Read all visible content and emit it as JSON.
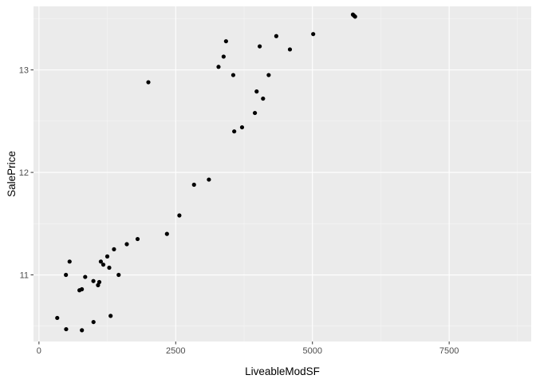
{
  "chart_data": {
    "type": "scatter",
    "title": "",
    "xlabel": "LiveableModSF",
    "ylabel": "SalePrice",
    "xlim": [
      -100,
      9000
    ],
    "ylim": [
      10.35,
      13.62
    ],
    "x_ticks": [
      0,
      2500,
      5000,
      7500
    ],
    "x_tick_labels": [
      "0",
      "2500",
      "5000",
      "7500"
    ],
    "y_ticks": [
      11,
      12,
      13
    ],
    "y_tick_labels": [
      "11",
      "12",
      "13"
    ],
    "grid": true,
    "legend": "none",
    "colors": {
      "panel_background": "#ebebeb",
      "grid_major": "#ffffff",
      "grid_minor": "#f5f5f5",
      "point": "#000000",
      "tick_mark": "#333333",
      "tick_label": "#4d4d4d"
    },
    "series": [
      {
        "points": [
          [
            334,
            10.58
          ],
          [
            497,
            10.47
          ],
          [
            785,
            10.46
          ],
          [
            997,
            10.54
          ],
          [
            1310,
            10.6
          ],
          [
            493,
            11.0
          ],
          [
            560,
            11.13
          ],
          [
            740,
            10.85
          ],
          [
            784,
            10.86
          ],
          [
            845,
            10.98
          ],
          [
            995,
            10.94
          ],
          [
            1080,
            10.9
          ],
          [
            1103,
            10.93
          ],
          [
            1457,
            11.0
          ],
          [
            1285,
            11.07
          ],
          [
            1176,
            11.1
          ],
          [
            1131,
            11.13
          ],
          [
            1249,
            11.18
          ],
          [
            1372,
            11.25
          ],
          [
            1606,
            11.3
          ],
          [
            1803,
            11.35
          ],
          [
            2340,
            11.4
          ],
          [
            2567,
            11.58
          ],
          [
            2835,
            11.88
          ],
          [
            3107,
            11.93
          ],
          [
            3570,
            12.4
          ],
          [
            3713,
            12.44
          ],
          [
            3948,
            12.58
          ],
          [
            4097,
            12.72
          ],
          [
            3980,
            12.79
          ],
          [
            4036,
            13.23
          ],
          [
            4339,
            13.33
          ],
          [
            4588,
            13.2
          ],
          [
            5014,
            13.35
          ],
          [
            4200,
            12.95
          ],
          [
            3420,
            13.28
          ],
          [
            5740,
            13.54
          ],
          [
            5760,
            13.53
          ],
          [
            5780,
            13.52
          ],
          [
            2000,
            12.88
          ],
          [
            3283,
            13.03
          ],
          [
            3376,
            13.13
          ],
          [
            3552,
            12.95
          ]
        ]
      }
    ]
  }
}
